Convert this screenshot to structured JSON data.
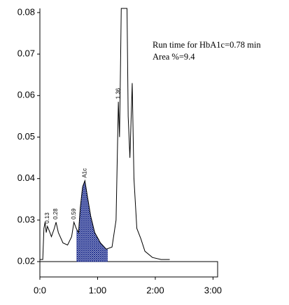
{
  "chart_data": {
    "type": "line",
    "annotations": [
      "Run time for HbA1c=0.78 min",
      "Area %=9.4"
    ],
    "x": [
      0.0,
      0.05,
      0.07,
      0.09,
      0.11,
      0.13,
      0.16,
      0.2,
      0.25,
      0.28,
      0.32,
      0.4,
      0.48,
      0.55,
      0.59,
      0.63,
      0.67,
      0.7,
      0.74,
      0.78,
      0.82,
      0.88,
      0.95,
      1.05,
      1.15,
      1.25,
      1.32,
      1.36,
      1.38,
      1.4,
      1.41,
      1.51,
      1.53,
      1.56,
      1.6,
      1.63,
      1.68,
      1.75,
      1.82,
      1.95,
      2.1,
      2.25
    ],
    "values": [
      0.0205,
      0.0205,
      0.028,
      0.0295,
      0.027,
      0.0285,
      0.0275,
      0.026,
      0.028,
      0.0295,
      0.027,
      0.0245,
      0.024,
      0.026,
      0.0295,
      0.028,
      0.027,
      0.033,
      0.038,
      0.0395,
      0.036,
      0.031,
      0.027,
      0.0245,
      0.023,
      0.0235,
      0.03,
      0.0585,
      0.05,
      0.07,
      0.081,
      0.081,
      0.055,
      0.045,
      0.063,
      0.04,
      0.028,
      0.0255,
      0.0225,
      0.021,
      0.0205,
      0.0205
    ],
    "color": "#000000",
    "shaded_range": [
      0.64,
      1.17
    ],
    "shade_color": "#1f2f8f",
    "peak_labels": [
      {
        "value": 0.13,
        "label": "0.13"
      },
      {
        "value": 0.28,
        "label": "0.28"
      },
      {
        "value": 0.59,
        "label": "0.59"
      },
      {
        "value": 0.78,
        "label": "A1c"
      },
      {
        "value": 1.36,
        "label": "1.36"
      }
    ],
    "xlim": [
      0,
      3.08
    ],
    "ylim": [
      0.0163,
      0.081
    ],
    "xticks": [
      {
        "value": 0,
        "label": "0:0"
      },
      {
        "value": 1,
        "label": "1:00"
      },
      {
        "value": 2,
        "label": "2:00"
      },
      {
        "value": 3,
        "label": "3:00"
      }
    ],
    "yticks": [
      0.02,
      0.03,
      0.04,
      0.05,
      0.06,
      0.07,
      0.08
    ]
  }
}
